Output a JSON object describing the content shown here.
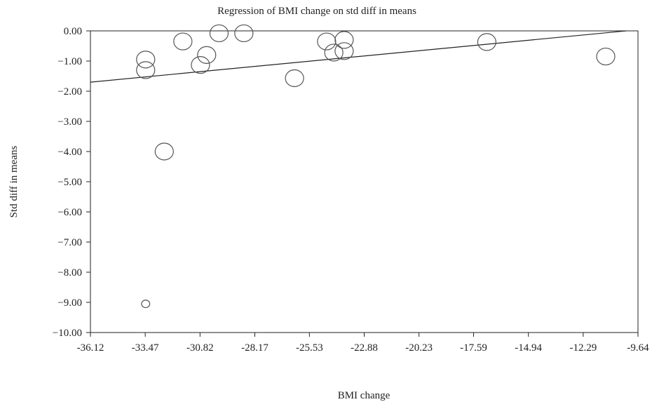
{
  "chart_data": {
    "type": "scatter",
    "title": "Regression of BMI change on std diff in means",
    "xlabel": "BMI change",
    "ylabel": "Std diff in means",
    "xlim": [
      -36.12,
      -9.64
    ],
    "ylim": [
      -10.0,
      0.0
    ],
    "x_ticks": [
      "-36.12",
      "-33.47",
      "-30.82",
      "-28.17",
      "-25.53",
      "-22.88",
      "-20.23",
      "-17.59",
      "-14.94",
      "-12.29",
      "-9.64"
    ],
    "x_tick_values": [
      -36.12,
      -33.47,
      -30.82,
      -28.17,
      -25.53,
      -22.88,
      -20.23,
      -17.59,
      -14.94,
      -12.29,
      -9.64
    ],
    "y_ticks": [
      "0.00",
      "−1.00",
      "−2.00",
      "−3.00",
      "−4.00",
      "−5.00",
      "−6.00",
      "−7.00",
      "−8.00",
      "−9.00",
      "−10.00"
    ],
    "y_tick_values": [
      0,
      -1,
      -2,
      -3,
      -4,
      -5,
      -6,
      -7,
      -8,
      -9,
      -10
    ],
    "grid": false,
    "legend": "none",
    "marker_color": "#555555",
    "line_color": "#222222",
    "points": [
      {
        "x": -33.45,
        "y": -0.95,
        "w": 1.0
      },
      {
        "x": -33.45,
        "y": -1.3,
        "w": 1.0
      },
      {
        "x": -33.45,
        "y": -9.05,
        "w": 0.45
      },
      {
        "x": -32.55,
        "y": -4.0,
        "w": 1.0
      },
      {
        "x": -31.65,
        "y": -0.35,
        "w": 1.0
      },
      {
        "x": -30.8,
        "y": -1.13,
        "w": 1.0
      },
      {
        "x": -30.5,
        "y": -0.8,
        "w": 1.0
      },
      {
        "x": -29.9,
        "y": -0.08,
        "w": 1.0
      },
      {
        "x": -28.7,
        "y": -0.08,
        "w": 1.0
      },
      {
        "x": -26.25,
        "y": -1.57,
        "w": 1.0
      },
      {
        "x": -24.7,
        "y": -0.35,
        "w": 1.0
      },
      {
        "x": -24.35,
        "y": -0.72,
        "w": 1.0
      },
      {
        "x": -23.85,
        "y": -0.3,
        "w": 1.0
      },
      {
        "x": -23.85,
        "y": -0.67,
        "w": 1.0
      },
      {
        "x": -16.95,
        "y": -0.37,
        "w": 1.0
      },
      {
        "x": -11.2,
        "y": -0.85,
        "w": 1.0
      }
    ],
    "regression_line": {
      "x": [
        -36.12,
        -10.2
      ],
      "y": [
        -1.7,
        0.0
      ]
    }
  }
}
